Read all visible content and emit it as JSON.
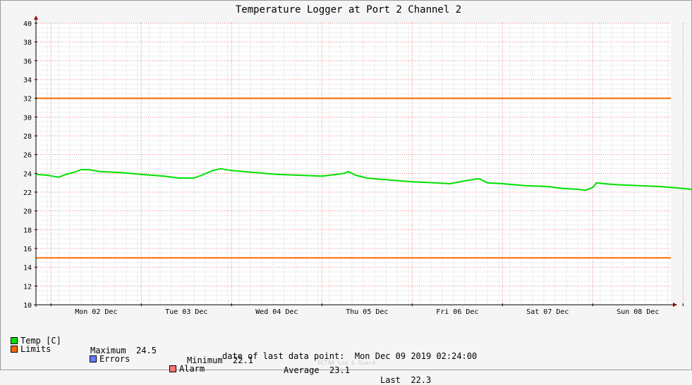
{
  "chart_data": {
    "type": "line",
    "title": "Temperature Logger at Port 2 Channel 2",
    "ylim": [
      10,
      40
    ],
    "yticks": [
      10,
      12,
      14,
      16,
      18,
      20,
      22,
      24,
      26,
      28,
      30,
      32,
      34,
      36,
      38,
      40
    ],
    "xlim": [
      "2019-12-01T20:00",
      "2019-12-09T02:24"
    ],
    "xtick_labels": [
      "Mon 02 Dec",
      "Tue 03 Dec",
      "Wed 04 Dec",
      "Thu 05 Dec",
      "Fri 06 Dec",
      "Sat 07 Dec",
      "Sun 08 Dec"
    ],
    "xtick_dates": [
      "2019-12-02",
      "2019-12-03",
      "2019-12-04",
      "2019-12-05",
      "2019-12-06",
      "2019-12-07",
      "2019-12-08"
    ],
    "grid": true,
    "limits": {
      "upper": 32,
      "lower": 15,
      "color": "#ff6600"
    },
    "series": [
      {
        "name": "Temp [C]",
        "color": "#00e000",
        "points": [
          [
            "2019-12-01T20:00",
            23.9
          ],
          [
            "2019-12-01T23:00",
            23.8
          ],
          [
            "2019-12-02T02:00",
            23.6
          ],
          [
            "2019-12-02T04:00",
            23.9
          ],
          [
            "2019-12-02T06:00",
            24.1
          ],
          [
            "2019-12-02T08:00",
            24.4
          ],
          [
            "2019-12-02T10:00",
            24.4
          ],
          [
            "2019-12-02T13:00",
            24.2
          ],
          [
            "2019-12-02T18:00",
            24.1
          ],
          [
            "2019-12-03T00:00",
            23.9
          ],
          [
            "2019-12-03T06:00",
            23.7
          ],
          [
            "2019-12-03T10:00",
            23.5
          ],
          [
            "2019-12-03T14:00",
            23.5
          ],
          [
            "2019-12-03T16:00",
            23.8
          ],
          [
            "2019-12-03T19:00",
            24.3
          ],
          [
            "2019-12-03T21:00",
            24.5
          ],
          [
            "2019-12-04T00:00",
            24.3
          ],
          [
            "2019-12-04T06:00",
            24.1
          ],
          [
            "2019-12-04T12:00",
            23.9
          ],
          [
            "2019-12-04T18:00",
            23.8
          ],
          [
            "2019-12-05T00:00",
            23.7
          ],
          [
            "2019-12-05T04:00",
            23.9
          ],
          [
            "2019-12-05T06:00",
            24.0
          ],
          [
            "2019-12-05T07:00",
            24.2
          ],
          [
            "2019-12-05T09:00",
            23.8
          ],
          [
            "2019-12-05T12:00",
            23.5
          ],
          [
            "2019-12-05T18:00",
            23.3
          ],
          [
            "2019-12-06T00:00",
            23.1
          ],
          [
            "2019-12-06T06:00",
            23.0
          ],
          [
            "2019-12-06T10:00",
            22.9
          ],
          [
            "2019-12-06T14:00",
            23.2
          ],
          [
            "2019-12-06T17:00",
            23.4
          ],
          [
            "2019-12-06T18:00",
            23.4
          ],
          [
            "2019-12-06T20:00",
            23.0
          ],
          [
            "2019-12-07T00:00",
            22.9
          ],
          [
            "2019-12-07T06:00",
            22.7
          ],
          [
            "2019-12-07T12:00",
            22.6
          ],
          [
            "2019-12-07T16:00",
            22.4
          ],
          [
            "2019-12-07T20:00",
            22.3
          ],
          [
            "2019-12-07T22:00",
            22.2
          ],
          [
            "2019-12-08T00:00",
            22.5
          ],
          [
            "2019-12-08T01:00",
            23.0
          ],
          [
            "2019-12-08T03:00",
            22.9
          ],
          [
            "2019-12-08T06:00",
            22.8
          ],
          [
            "2019-12-08T12:00",
            22.7
          ],
          [
            "2019-12-08T18:00",
            22.6
          ],
          [
            "2019-12-09T00:00",
            22.4
          ],
          [
            "2019-12-09T02:24",
            22.3
          ]
        ]
      }
    ]
  },
  "legend": {
    "temp_label": "Temp [C]",
    "temp_color": "#00e000",
    "max_label": "Maximum",
    "max_value": "24.5",
    "min_label": "Minimum",
    "min_value": "22.1",
    "avg_label": "Average",
    "avg_value": "23.1",
    "last_label": "Last",
    "last_value": "22.3",
    "limits_label": "Limits",
    "limits_color": "#ff6600",
    "errors_label": "Errors",
    "errors_color": "#6a7aff",
    "alarm_label": "Alarm",
    "alarm_color": "#ff7373"
  },
  "footer": {
    "last_point_label": "date of last data point:",
    "last_point_value": "Mon Dec 09 2019 02:24:00",
    "credit": "OCTAA Log & Guard"
  }
}
